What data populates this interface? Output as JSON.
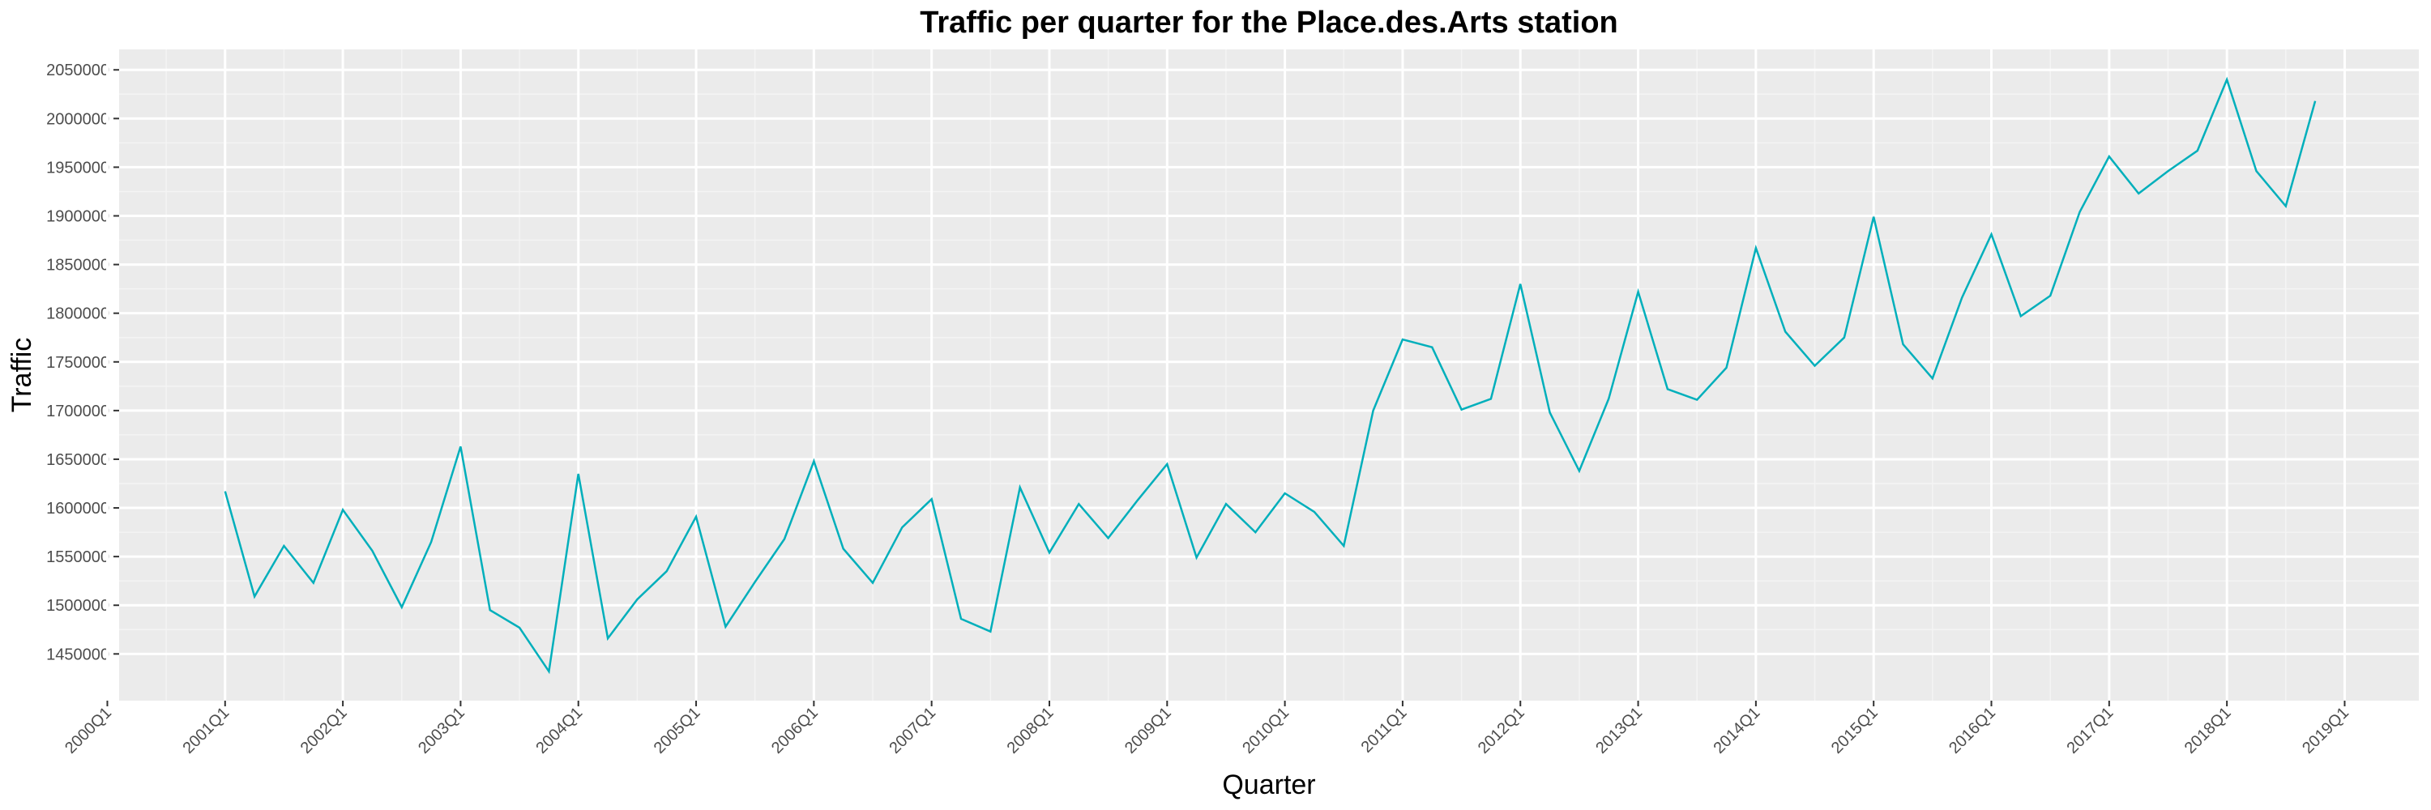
{
  "chart_data": {
    "type": "line",
    "title": "Traffic per quarter for the Place.des.Arts station",
    "x_label": "Quarter",
    "y_label": "Traffic",
    "x": [
      "2001Q1",
      "2001Q2",
      "2001Q3",
      "2001Q4",
      "2002Q1",
      "2002Q2",
      "2002Q3",
      "2002Q4",
      "2003Q1",
      "2003Q2",
      "2003Q3",
      "2003Q4",
      "2004Q1",
      "2004Q2",
      "2004Q3",
      "2004Q4",
      "2005Q1",
      "2005Q2",
      "2005Q3",
      "2005Q4",
      "2006Q1",
      "2006Q2",
      "2006Q3",
      "2006Q4",
      "2007Q1",
      "2007Q2",
      "2007Q3",
      "2007Q4",
      "2008Q1",
      "2008Q2",
      "2008Q3",
      "2008Q4",
      "2009Q1",
      "2009Q2",
      "2009Q3",
      "2009Q4",
      "2010Q1",
      "2010Q2",
      "2010Q3",
      "2010Q4",
      "2011Q1",
      "2011Q2",
      "2011Q3",
      "2011Q4",
      "2012Q1",
      "2012Q2",
      "2012Q3",
      "2012Q4",
      "2013Q1",
      "2013Q2",
      "2013Q3",
      "2013Q4",
      "2014Q1",
      "2014Q2",
      "2014Q3",
      "2014Q4",
      "2015Q1",
      "2015Q2",
      "2015Q3",
      "2015Q4",
      "2016Q1",
      "2016Q2",
      "2016Q3",
      "2016Q4",
      "2017Q1",
      "2017Q2",
      "2017Q3",
      "2017Q4",
      "2018Q1",
      "2018Q2",
      "2018Q3",
      "2018Q4"
    ],
    "series": [
      {
        "color": "#00AFBB",
        "values": [
          1617000,
          1509000,
          1561000,
          1523000,
          1598000,
          1556000,
          1498000,
          1565000,
          1663000,
          1495000,
          1477000,
          1432000,
          1635000,
          1466000,
          1506000,
          1535000,
          1591000,
          1478000,
          1524000,
          1568000,
          1648000,
          1558000,
          1523000,
          1580000,
          1609000,
          1486000,
          1473000,
          1621000,
          1554000,
          1604000,
          1569000,
          1608000,
          1645000,
          1549000,
          1604000,
          1575000,
          1615000,
          1596000,
          1561000,
          1700000,
          1773000,
          1765000,
          1701000,
          1712000,
          1830000,
          1698000,
          1638000,
          1712000,
          1822000,
          1722000,
          1711000,
          1744000,
          1867000,
          1781000,
          1746000,
          1775000,
          1899000,
          1768000,
          1733000,
          1816000,
          1881000,
          1797000,
          1818000,
          1904000,
          1961000,
          1923000,
          1946000,
          1967000,
          2040000,
          1946000,
          1910000,
          2018000
        ]
      }
    ],
    "xlim": [
      2000.1,
      2019.63
    ],
    "xticks": [
      {
        "value": 2000,
        "label": "2000Q1"
      },
      {
        "value": 2001,
        "label": "2001Q1"
      },
      {
        "value": 2002,
        "label": "2002Q1"
      },
      {
        "value": 2003,
        "label": "2003Q1"
      },
      {
        "value": 2004,
        "label": "2004Q1"
      },
      {
        "value": 2005,
        "label": "2005Q1"
      },
      {
        "value": 2006,
        "label": "2006Q1"
      },
      {
        "value": 2007,
        "label": "2007Q1"
      },
      {
        "value": 2008,
        "label": "2008Q1"
      },
      {
        "value": 2009,
        "label": "2009Q1"
      },
      {
        "value": 2010,
        "label": "2010Q1"
      },
      {
        "value": 2011,
        "label": "2011Q1"
      },
      {
        "value": 2012,
        "label": "2012Q1"
      },
      {
        "value": 2013,
        "label": "2013Q1"
      },
      {
        "value": 2014,
        "label": "2014Q1"
      },
      {
        "value": 2015,
        "label": "2015Q1"
      },
      {
        "value": 2016,
        "label": "2016Q1"
      },
      {
        "value": 2017,
        "label": "2017Q1"
      },
      {
        "value": 2018,
        "label": "2018Q1"
      },
      {
        "value": 2019,
        "label": "2019Q1"
      }
    ],
    "ylim": [
      1402000,
      2071000
    ],
    "yticks": [
      1450000,
      1500000,
      1550000,
      1600000,
      1650000,
      1700000,
      1750000,
      1800000,
      1850000,
      1900000,
      1950000,
      2000000,
      2050000
    ],
    "grid": true
  }
}
